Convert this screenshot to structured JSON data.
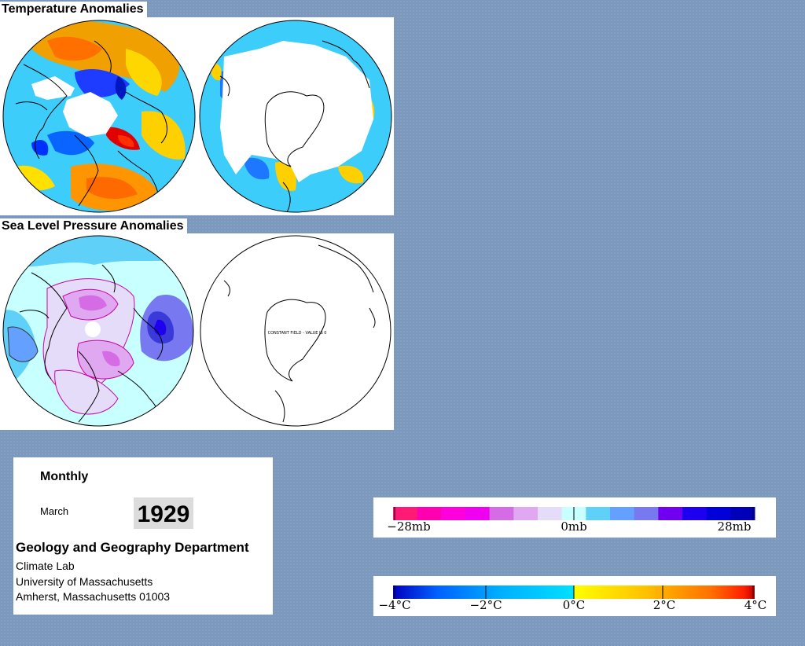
{
  "sections": {
    "temperature_title": "Temperature Anomalies",
    "pressure_title": "Sea Level Pressure Anomalies"
  },
  "maps": {
    "slp_south_annotation": "CONSTANT FIELD - VALUE IS 0"
  },
  "info": {
    "frequency": "Monthly",
    "month": "March",
    "year": "1929",
    "department": "Geology and Geography Department",
    "lab": "Climate Lab",
    "university": "University of Massachusetts",
    "address": "Amherst, Massachusetts 01003"
  },
  "pressure_legend": {
    "labels": [
      "−28mb",
      "0mb",
      "28mb"
    ],
    "colors": [
      "#ff1a75",
      "#ff00b0",
      "#ff00dd",
      "#f000f0",
      "#d66be6",
      "#e0a8f0",
      "#e4dcf8",
      "#c8ffff",
      "#5fd0f8",
      "#64a0ff",
      "#7878f0",
      "#7000f0",
      "#1e00f0",
      "#0000d8",
      "#0000b8"
    ]
  },
  "temperature_legend": {
    "labels": [
      "−4°C",
      "−2°C",
      "0°C",
      "2°C",
      "4°C"
    ],
    "colors": [
      "#0000c0",
      "#0060ff",
      "#00b0ff",
      "#00e0ff",
      "#ffff00",
      "#ffc000",
      "#ff7000",
      "#ff2000",
      "#c00000"
    ]
  }
}
